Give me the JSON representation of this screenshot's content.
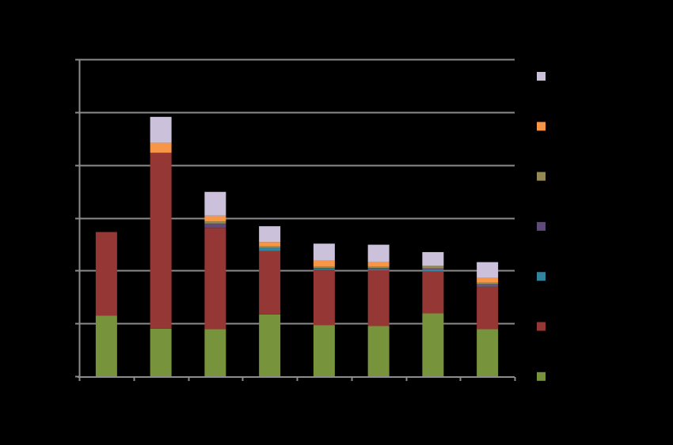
{
  "chart_data": {
    "type": "bar",
    "stacked": true,
    "title": "",
    "xlabel": "",
    "ylabel": "",
    "ylim": [
      0,
      6
    ],
    "y_gridlines": [
      0,
      1,
      2,
      3,
      4,
      5,
      6
    ],
    "grid": true,
    "legend_position": "right",
    "categories": [
      "",
      "",
      "",
      "",
      "",
      "",
      "",
      ""
    ],
    "series": [
      {
        "color": "#77933c",
        "values": [
          1.15,
          0.9,
          0.89,
          1.17,
          0.97,
          0.95,
          1.19,
          0.89
        ]
      },
      {
        "color": "#953735",
        "values": [
          1.58,
          3.33,
          1.92,
          1.2,
          1.05,
          1.06,
          0.79,
          0.81
        ]
      },
      {
        "color": "#31859c",
        "values": [
          0.0,
          0.0,
          0.0,
          0.06,
          0.02,
          0.02,
          0.04,
          0.02
        ]
      },
      {
        "color": "#604a7b",
        "values": [
          0.0,
          0.0,
          0.08,
          0.0,
          0.01,
          0.02,
          0.02,
          0.02
        ]
      },
      {
        "color": "#948a54",
        "values": [
          0.0,
          0.0,
          0.04,
          0.03,
          0.03,
          0.03,
          0.05,
          0.03
        ]
      },
      {
        "color": "#f79646",
        "values": [
          0.0,
          0.19,
          0.11,
          0.08,
          0.11,
          0.09,
          0.0,
          0.09
        ]
      },
      {
        "color": "#ccc1da",
        "values": [
          0.0,
          0.49,
          0.45,
          0.3,
          0.32,
          0.32,
          0.26,
          0.3
        ]
      }
    ]
  }
}
